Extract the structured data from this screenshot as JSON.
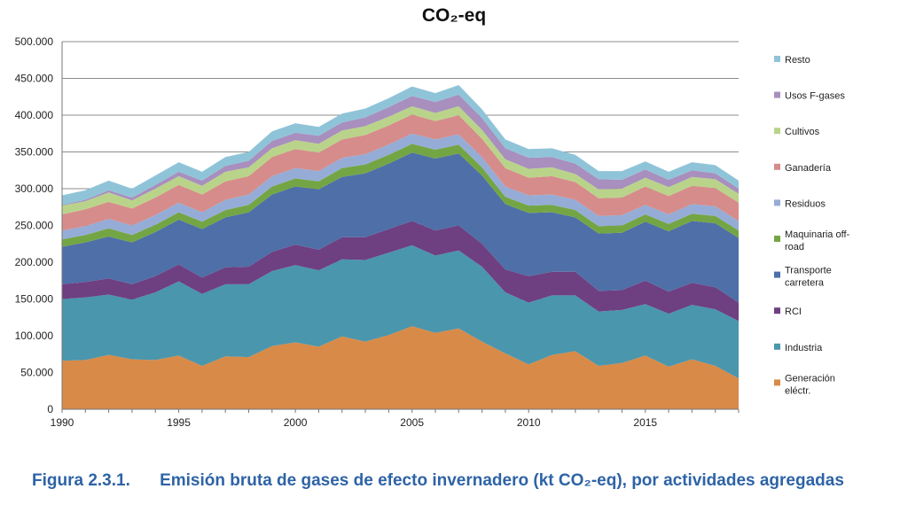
{
  "chart_data": {
    "type": "area",
    "stacked": true,
    "title": "CO₂-eq",
    "xlabel": "",
    "ylabel": "",
    "ylim": [
      0,
      500000
    ],
    "grid": true,
    "legend_position": "right",
    "x_ticks": [
      "1990",
      "1995",
      "2000",
      "2005",
      "2010",
      "2015"
    ],
    "y_ticks": [
      "0",
      "50.000",
      "100.000",
      "150.000",
      "200.000",
      "250.000",
      "300.000",
      "350.000",
      "400.000",
      "450.000",
      "500.000"
    ],
    "x": [
      1990,
      1991,
      1992,
      1993,
      1994,
      1995,
      1996,
      1997,
      1998,
      1999,
      2000,
      2001,
      2002,
      2003,
      2004,
      2005,
      2006,
      2007,
      2008,
      2009,
      2010,
      2011,
      2012,
      2013,
      2014,
      2015,
      2016,
      2017,
      2018,
      2019
    ],
    "series": [
      {
        "name": "Generación eléctr.",
        "color": "#d88a48",
        "values": [
          66000,
          67000,
          74000,
          68000,
          67000,
          73000,
          59000,
          72000,
          71000,
          86000,
          91000,
          85000,
          99000,
          92000,
          101000,
          113000,
          104000,
          110000,
          92000,
          76000,
          61000,
          74000,
          79000,
          59000,
          63000,
          73000,
          58000,
          68000,
          59000,
          42000
        ]
      },
      {
        "name": "Industria",
        "color": "#4a96ac",
        "values": [
          84000,
          85000,
          82000,
          81000,
          92000,
          101000,
          98000,
          98000,
          99000,
          102000,
          105000,
          104000,
          105000,
          111000,
          112000,
          110000,
          105000,
          106000,
          102000,
          83000,
          84000,
          81000,
          76000,
          74000,
          72000,
          70000,
          72000,
          74000,
          77000,
          78000
        ]
      },
      {
        "name": "RCI",
        "color": "#6e3f81",
        "values": [
          20000,
          21000,
          22000,
          21000,
          22000,
          23000,
          22000,
          23000,
          24000,
          26000,
          28000,
          28000,
          30000,
          31000,
          32000,
          33000,
          34000,
          34000,
          31000,
          31000,
          36000,
          32000,
          32000,
          28000,
          27000,
          32000,
          30000,
          30000,
          30000,
          25000
        ]
      },
      {
        "name": "Transporte carretera",
        "color": "#4e6fa7",
        "values": [
          51000,
          54000,
          57000,
          57000,
          60000,
          61000,
          66000,
          68000,
          74000,
          78000,
          79000,
          82000,
          82000,
          87000,
          89000,
          93000,
          98000,
          98000,
          93000,
          89000,
          86000,
          81000,
          74000,
          78000,
          78000,
          80000,
          82000,
          84000,
          87000,
          88000
        ]
      },
      {
        "name": "Maquinaria off-road",
        "color": "#74a544",
        "values": [
          10000,
          10000,
          11000,
          10000,
          10000,
          10000,
          10000,
          10000,
          10000,
          11000,
          11000,
          11000,
          12000,
          12000,
          12000,
          12000,
          12000,
          12000,
          11000,
          10000,
          10000,
          10000,
          10000,
          10000,
          10000,
          10000,
          10000,
          10000,
          10000,
          10000
        ]
      },
      {
        "name": "Residuos",
        "color": "#95acd6",
        "values": [
          12000,
          12000,
          13000,
          13000,
          13000,
          13000,
          13000,
          14000,
          14000,
          14000,
          14000,
          14000,
          14000,
          14000,
          14000,
          14000,
          14000,
          14000,
          14000,
          14000,
          14000,
          14000,
          14000,
          14000,
          14000,
          13000,
          13000,
          13000,
          13000,
          13000
        ]
      },
      {
        "name": "Ganadería",
        "color": "#d68c8a",
        "values": [
          22000,
          23000,
          23000,
          23000,
          24000,
          24000,
          24000,
          25000,
          25000,
          26000,
          26000,
          25000,
          25000,
          26000,
          26000,
          26000,
          25000,
          26000,
          25000,
          25000,
          24000,
          25000,
          24000,
          24000,
          24000,
          25000,
          25000,
          25000,
          25000,
          25000
        ]
      },
      {
        "name": "Cultivos",
        "color": "#b9d48a",
        "values": [
          12000,
          11000,
          13000,
          11000,
          12000,
          12000,
          12000,
          13000,
          12000,
          12000,
          12000,
          12000,
          12000,
          12000,
          12000,
          11000,
          11000,
          12000,
          12000,
          12000,
          12000,
          12000,
          11000,
          12000,
          12000,
          12000,
          12000,
          12000,
          12000,
          12000
        ]
      },
      {
        "name": "Usos F-gases",
        "color": "#a88fbe",
        "values": [
          1000,
          2000,
          3000,
          4000,
          5000,
          6000,
          7000,
          8000,
          9000,
          10000,
          10000,
          11000,
          11000,
          12000,
          13000,
          14000,
          15000,
          16000,
          16000,
          15000,
          15000,
          14000,
          14000,
          14000,
          12000,
          11000,
          10000,
          9000,
          8000,
          7000
        ]
      },
      {
        "name": "Resto",
        "color": "#8fc4d8",
        "values": [
          13000,
          13000,
          13000,
          12000,
          13000,
          13000,
          12000,
          12000,
          12000,
          13000,
          13000,
          12000,
          12000,
          12000,
          12000,
          13000,
          12000,
          13000,
          12000,
          12000,
          12000,
          12000,
          12000,
          11000,
          12000,
          11000,
          11000,
          11000,
          11000,
          11000
        ]
      }
    ]
  },
  "caption": {
    "figure_label": "Figura  2.3.1.",
    "text": "Emisión bruta de gases de efecto invernadero (kt CO₂-eq), por actividades agregadas"
  }
}
